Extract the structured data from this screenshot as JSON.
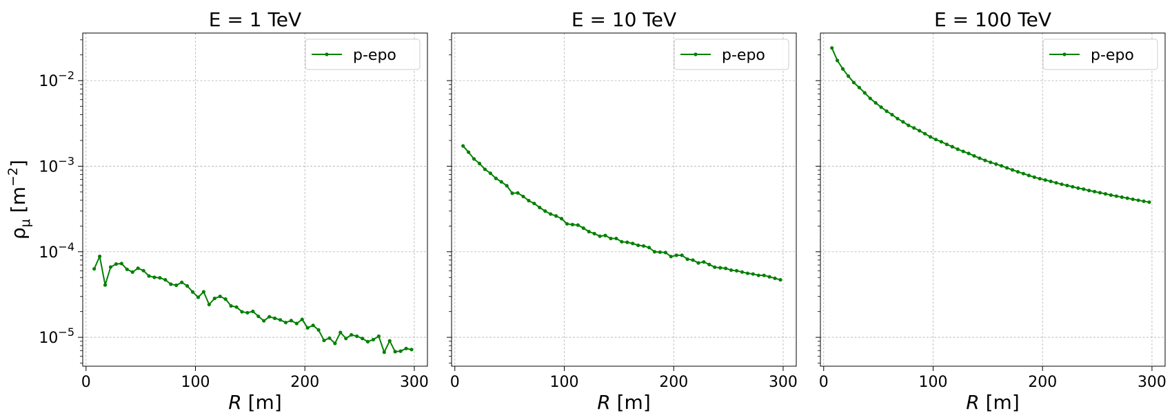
{
  "chart_data": [
    {
      "type": "line",
      "title": "E = 1 TeV",
      "xlabel": "R [m]",
      "ylabel": "ρμ [m−2]",
      "yscale": "log",
      "xlim": [
        -3,
        312
      ],
      "ylim": [
        4.6e-06,
        0.036
      ],
      "xticks": [
        0,
        100,
        200,
        300
      ],
      "yticks": [
        1e-05,
        0.0001,
        0.001,
        0.01
      ],
      "grid": true,
      "legend_position": "top-right",
      "series": [
        {
          "name": "p-epo",
          "color": "#008000",
          "marker": "circle",
          "x": [
            7.5,
            12.5,
            17.5,
            22.5,
            27.5,
            32.5,
            37.5,
            42.5,
            47.5,
            52.5,
            57.5,
            62.5,
            67.5,
            72.5,
            77.5,
            82.5,
            87.5,
            92.5,
            97.5,
            102.5,
            107.5,
            112.5,
            117.5,
            122.5,
            127.5,
            132.5,
            137.5,
            142.5,
            147.5,
            152.5,
            157.5,
            162.5,
            167.5,
            172.5,
            177.5,
            182.5,
            187.5,
            192.5,
            197.5,
            202.5,
            207.5,
            212.5,
            217.5,
            222.5,
            227.5,
            232.5,
            237.5,
            242.5,
            247.5,
            252.5,
            257.5,
            262.5,
            267.5,
            272.5,
            277.5,
            282.5,
            287.5,
            292.5,
            297.5
          ],
          "y": [
            6.32e-05,
            8.83e-05,
            4.09e-05,
            6.63e-05,
            7.19e-05,
            7.28e-05,
            6.23e-05,
            5.79e-05,
            6.42e-05,
            6.02e-05,
            5.21e-05,
            5.03e-05,
            4.96e-05,
            4.7e-05,
            4.18e-05,
            4.06e-05,
            4.39e-05,
            3.99e-05,
            3.39e-05,
            2.94e-05,
            3.4e-05,
            2.42e-05,
            2.85e-05,
            3.01e-05,
            2.8e-05,
            2.33e-05,
            2.26e-05,
            1.99e-05,
            1.94e-05,
            2.01e-05,
            1.76e-05,
            1.56e-05,
            1.74e-05,
            1.67e-05,
            1.6e-05,
            1.49e-05,
            1.57e-05,
            1.45e-05,
            1.62e-05,
            1.29e-05,
            1.38e-05,
            1.22e-05,
            9.2e-06,
            9.8e-06,
            8.5e-06,
            1.14e-05,
            9.7e-06,
            1.07e-05,
            1.03e-05,
            9.7e-06,
            8.9e-06,
            9.4e-06,
            1.03e-05,
            6.7e-06,
            9.1e-06,
            6.8e-06,
            6.9e-06,
            7.4e-06,
            7.2e-06
          ]
        }
      ]
    },
    {
      "type": "line",
      "title": "E = 10 TeV",
      "xlabel": "R [m]",
      "ylabel": "",
      "yscale": "log",
      "xlim": [
        -3,
        312
      ],
      "ylim": [
        4.6e-06,
        0.036
      ],
      "xticks": [
        0,
        100,
        200,
        300
      ],
      "yticks": [
        1e-05,
        0.0001,
        0.001,
        0.01
      ],
      "grid": true,
      "legend_position": "top-right",
      "series": [
        {
          "name": "p-epo",
          "color": "#008000",
          "marker": "circle",
          "x": [
            7.5,
            12.5,
            17.5,
            22.5,
            27.5,
            32.5,
            37.5,
            42.5,
            47.5,
            52.5,
            57.5,
            62.5,
            67.5,
            72.5,
            77.5,
            82.5,
            87.5,
            92.5,
            97.5,
            102.5,
            107.5,
            112.5,
            117.5,
            122.5,
            127.5,
            132.5,
            137.5,
            142.5,
            147.5,
            152.5,
            157.5,
            162.5,
            167.5,
            172.5,
            177.5,
            182.5,
            187.5,
            192.5,
            197.5,
            202.5,
            207.5,
            212.5,
            217.5,
            222.5,
            227.5,
            232.5,
            237.5,
            242.5,
            247.5,
            252.5,
            257.5,
            262.5,
            267.5,
            272.5,
            277.5,
            282.5,
            287.5,
            292.5,
            297.5
          ],
          "y": [
            0.001725,
            0.001459,
            0.001217,
            0.001076,
            0.00092,
            0.000827,
            0.000721,
            0.000657,
            0.000591,
            0.000483,
            0.000487,
            0.000443,
            0.000396,
            0.000367,
            0.000329,
            0.000299,
            0.000276,
            0.000262,
            0.000244,
            0.000212,
            0.000208,
            0.000205,
            0.000189,
            0.000172,
            0.000163,
            0.000152,
            0.000155,
            0.000143,
            0.000143,
            0.000131,
            0.000129,
            0.000125,
            0.000119,
            0.000117,
            0.000112,
            0.0001,
            9.9e-05,
            9.8e-05,
            8.8e-05,
            9.1e-05,
            9.1e-05,
            8.2e-05,
            8e-05,
            7.4e-05,
            7.6e-05,
            7.1e-05,
            6.6e-05,
            6.5e-05,
            6.4e-05,
            6.1e-05,
            6e-05,
            5.8e-05,
            5.6e-05,
            5.5e-05,
            5.3e-05,
            5.3e-05,
            5.1e-05,
            4.9e-05,
            4.7e-05
          ]
        }
      ]
    },
    {
      "type": "line",
      "title": "E = 100 TeV",
      "xlabel": "R [m]",
      "ylabel": "",
      "yscale": "log",
      "xlim": [
        -3,
        312
      ],
      "ylim": [
        4.6e-06,
        0.036
      ],
      "xticks": [
        0,
        100,
        200,
        300
      ],
      "yticks": [
        1e-05,
        0.0001,
        0.001,
        0.01
      ],
      "grid": true,
      "legend_position": "top-right",
      "series": [
        {
          "name": "p-epo",
          "color": "#008000",
          "marker": "circle",
          "x": [
            7.5,
            12.5,
            17.5,
            22.5,
            27.5,
            32.5,
            37.5,
            42.5,
            47.5,
            52.5,
            57.5,
            62.5,
            67.5,
            72.5,
            77.5,
            82.5,
            87.5,
            92.5,
            97.5,
            102.5,
            107.5,
            112.5,
            117.5,
            122.5,
            127.5,
            132.5,
            137.5,
            142.5,
            147.5,
            152.5,
            157.5,
            162.5,
            167.5,
            172.5,
            177.5,
            182.5,
            187.5,
            192.5,
            197.5,
            202.5,
            207.5,
            212.5,
            217.5,
            222.5,
            227.5,
            232.5,
            237.5,
            242.5,
            247.5,
            252.5,
            257.5,
            262.5,
            267.5,
            272.5,
            277.5,
            282.5,
            287.5,
            292.5,
            297.5
          ],
          "y": [
            0.0241,
            0.0172,
            0.0137,
            0.0113,
            0.0095,
            0.0083,
            0.0072,
            0.0062,
            0.0055,
            0.0049,
            0.0044,
            0.004,
            0.0036,
            0.0033,
            0.003,
            0.0028,
            0.0026,
            0.0024,
            0.0022,
            0.00205,
            0.00193,
            0.0018,
            0.00169,
            0.00158,
            0.00149,
            0.00141,
            0.00132,
            0.00124,
            0.00117,
            0.00111,
            0.00106,
            0.00101,
            0.000955,
            0.000905,
            0.00086,
            0.00082,
            0.00078,
            0.000745,
            0.000715,
            0.00069,
            0.000665,
            0.00064,
            0.000615,
            0.000595,
            0.000575,
            0.000555,
            0.00054,
            0.00052,
            0.000505,
            0.00049,
            0.000475,
            0.00046,
            0.000447,
            0.000435,
            0.000423,
            0.000411,
            0.0004,
            0.00039,
            0.00038
          ]
        }
      ]
    }
  ]
}
